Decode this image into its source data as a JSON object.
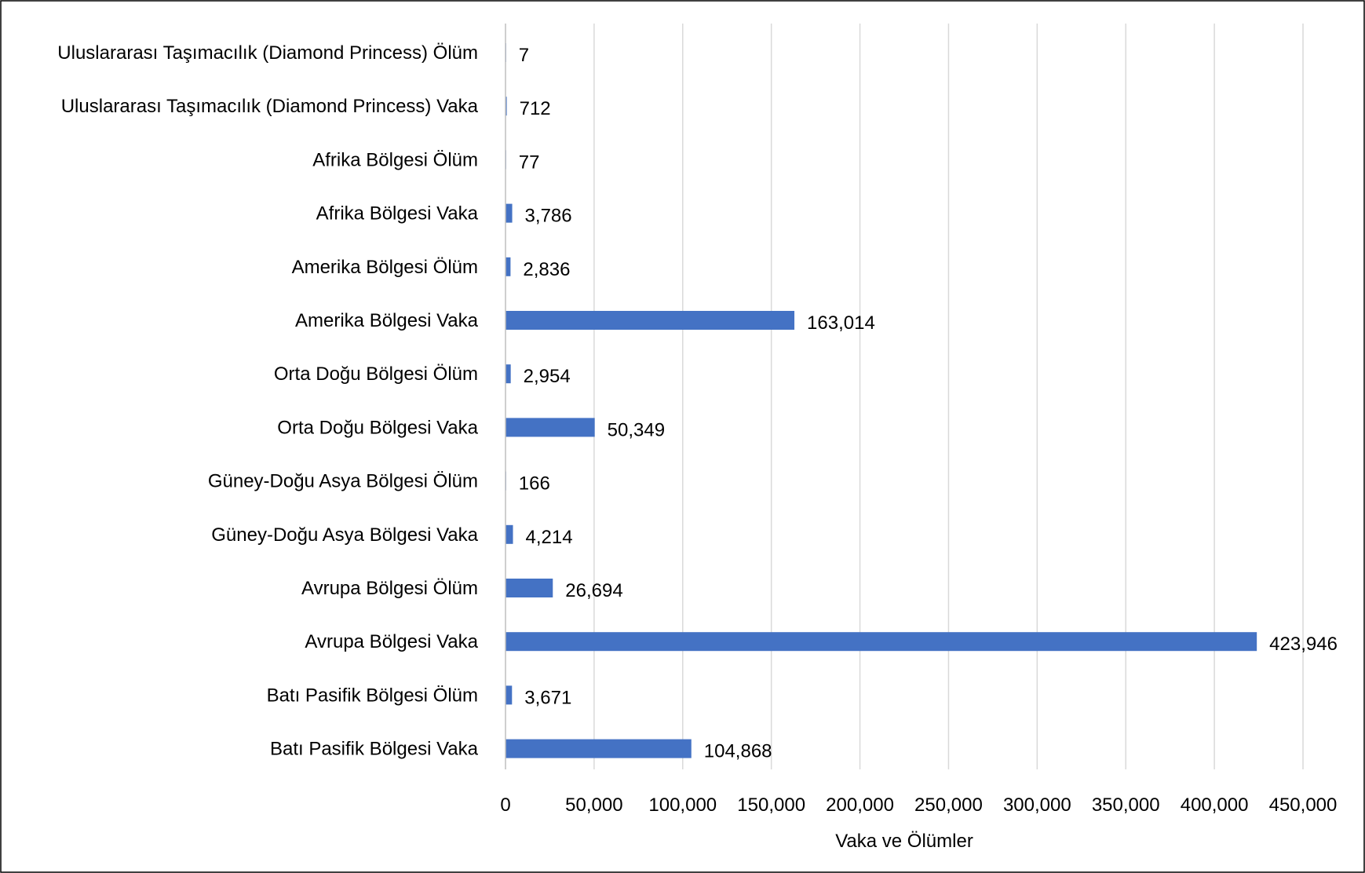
{
  "chart_data": {
    "type": "bar",
    "orientation": "horizontal",
    "title": "",
    "xlabel": "Vaka ve Ölümler",
    "ylabel": "",
    "xlim": [
      0,
      450000
    ],
    "x_ticks": [
      0,
      50000,
      100000,
      150000,
      200000,
      250000,
      300000,
      350000,
      400000,
      450000
    ],
    "x_tick_labels": [
      "0",
      "50,000",
      "100,000",
      "150,000",
      "200,000",
      "250,000",
      "300,000",
      "350,000",
      "400,000",
      "450,000"
    ],
    "grid": "vertical",
    "legend": "none",
    "bar_color": "#4472C4",
    "categories": [
      "Uluslararası Taşımacılık (Diamond Princess) Ölüm",
      "Uluslararası Taşımacılık (Diamond Princess) Vaka",
      "Afrika Bölgesi Ölüm",
      "Afrika Bölgesi Vaka",
      "Amerika Bölgesi Ölüm",
      "Amerika Bölgesi Vaka",
      "Orta Doğu Bölgesi Ölüm",
      "Orta Doğu Bölgesi Vaka",
      "Güney-Doğu Asya Bölgesi Ölüm",
      "Güney-Doğu Asya Bölgesi Vaka",
      "Avrupa Bölgesi Ölüm",
      "Avrupa Bölgesi Vaka",
      "Batı Pasifik Bölgesi Ölüm",
      "Batı Pasifik Bölgesi Vaka"
    ],
    "values": [
      7,
      712,
      77,
      3786,
      2836,
      163014,
      2954,
      50349,
      166,
      4214,
      26694,
      423946,
      3671,
      104868
    ],
    "data_labels": [
      "7",
      "712",
      "77",
      "3,786",
      "2,836",
      "163,014",
      "2,954",
      "50,349",
      "166",
      "4,214",
      "26,694",
      "423,946",
      "3,671",
      "104,868"
    ]
  }
}
